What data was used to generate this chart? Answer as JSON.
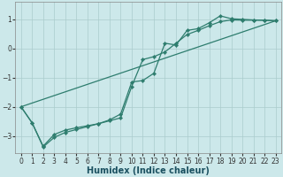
{
  "xlabel": "Humidex (Indice chaleur)",
  "bg_color": "#cce8ea",
  "grid_color": "#aacccc",
  "line_color": "#2e7d6e",
  "xlim": [
    -0.5,
    23.5
  ],
  "ylim": [
    -3.6,
    1.6
  ],
  "yticks": [
    -3,
    -2,
    -1,
    0,
    1
  ],
  "xticks": [
    0,
    1,
    2,
    3,
    4,
    5,
    6,
    7,
    8,
    9,
    10,
    11,
    12,
    13,
    14,
    15,
    16,
    17,
    18,
    19,
    20,
    21,
    22,
    23
  ],
  "line1_x": [
    0,
    1,
    2,
    3,
    4,
    5,
    6,
    7,
    8,
    9,
    10,
    11,
    12,
    13,
    14,
    15,
    16,
    17,
    18,
    19,
    20,
    21,
    22,
    23
  ],
  "line1_y": [
    -2.0,
    -2.55,
    -3.35,
    -2.95,
    -2.8,
    -2.72,
    -2.65,
    -2.58,
    -2.45,
    -2.25,
    -1.15,
    -1.1,
    -0.85,
    0.18,
    0.12,
    0.62,
    0.68,
    0.88,
    1.12,
    1.02,
    1.0,
    0.98,
    0.97,
    0.95
  ],
  "line2_x": [
    0,
    1,
    2,
    3,
    4,
    5,
    6,
    7,
    8,
    9,
    10,
    11,
    12,
    13,
    14,
    15,
    16,
    17,
    18,
    19,
    20,
    21,
    22,
    23
  ],
  "line2_y": [
    -2.0,
    -2.55,
    -3.38,
    -3.05,
    -2.88,
    -2.78,
    -2.68,
    -2.58,
    -2.48,
    -2.38,
    -1.3,
    -0.38,
    -0.28,
    -0.12,
    0.18,
    0.48,
    0.62,
    0.78,
    0.92,
    0.98,
    0.97,
    0.97,
    0.97,
    0.95
  ],
  "line3_x": [
    0,
    23
  ],
  "line3_y": [
    -2.0,
    0.95
  ],
  "xlabel_fontsize": 7,
  "xlabel_color": "#1a5060",
  "tick_fontsize": 5.5,
  "lw": 0.9,
  "ms": 2.2
}
